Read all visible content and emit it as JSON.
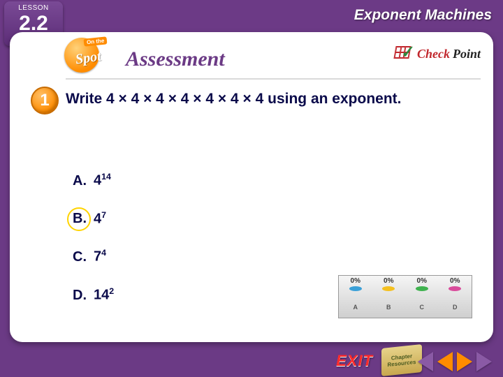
{
  "theme": {
    "bg_color": "#6b3a85",
    "card_bg": "#ffffff",
    "accent_orange": "#ff8c00",
    "text_navy": "#0a0a4a",
    "highlight_yellow": "#ffd400",
    "exit_red": "#ff2a2a"
  },
  "header": {
    "lesson_label": "LESSON",
    "lesson_number": "2.2",
    "topic": "Exponent Machines",
    "badge_line1": "On the",
    "badge_line2": "Spot",
    "title": "Assessment",
    "checkpoint_check": "Check",
    "checkpoint_point": "Point"
  },
  "question": {
    "number": "1",
    "text": "Write 4 × 4 × 4 × 4 × 4 × 4 × 4 using an exponent.",
    "answers": [
      {
        "letter": "A.",
        "base": "4",
        "exp": "14",
        "correct": false
      },
      {
        "letter": "B.",
        "base": "4",
        "exp": "7",
        "correct": true
      },
      {
        "letter": "C.",
        "base": "7",
        "exp": "4",
        "correct": false
      },
      {
        "letter": "D.",
        "base": "14",
        "exp": "2",
        "correct": false
      }
    ]
  },
  "response_graph": {
    "percent_label": "0%",
    "options": [
      {
        "label": "A",
        "color": "#3aa0d8",
        "pct": 0
      },
      {
        "label": "B",
        "color": "#f4c020",
        "pct": 0
      },
      {
        "label": "C",
        "color": "#3fb24f",
        "pct": 0
      },
      {
        "label": "D",
        "color": "#d94b9b",
        "pct": 0
      }
    ]
  },
  "nav": {
    "exit": "EXIT",
    "resources": "Chapter Resources"
  }
}
